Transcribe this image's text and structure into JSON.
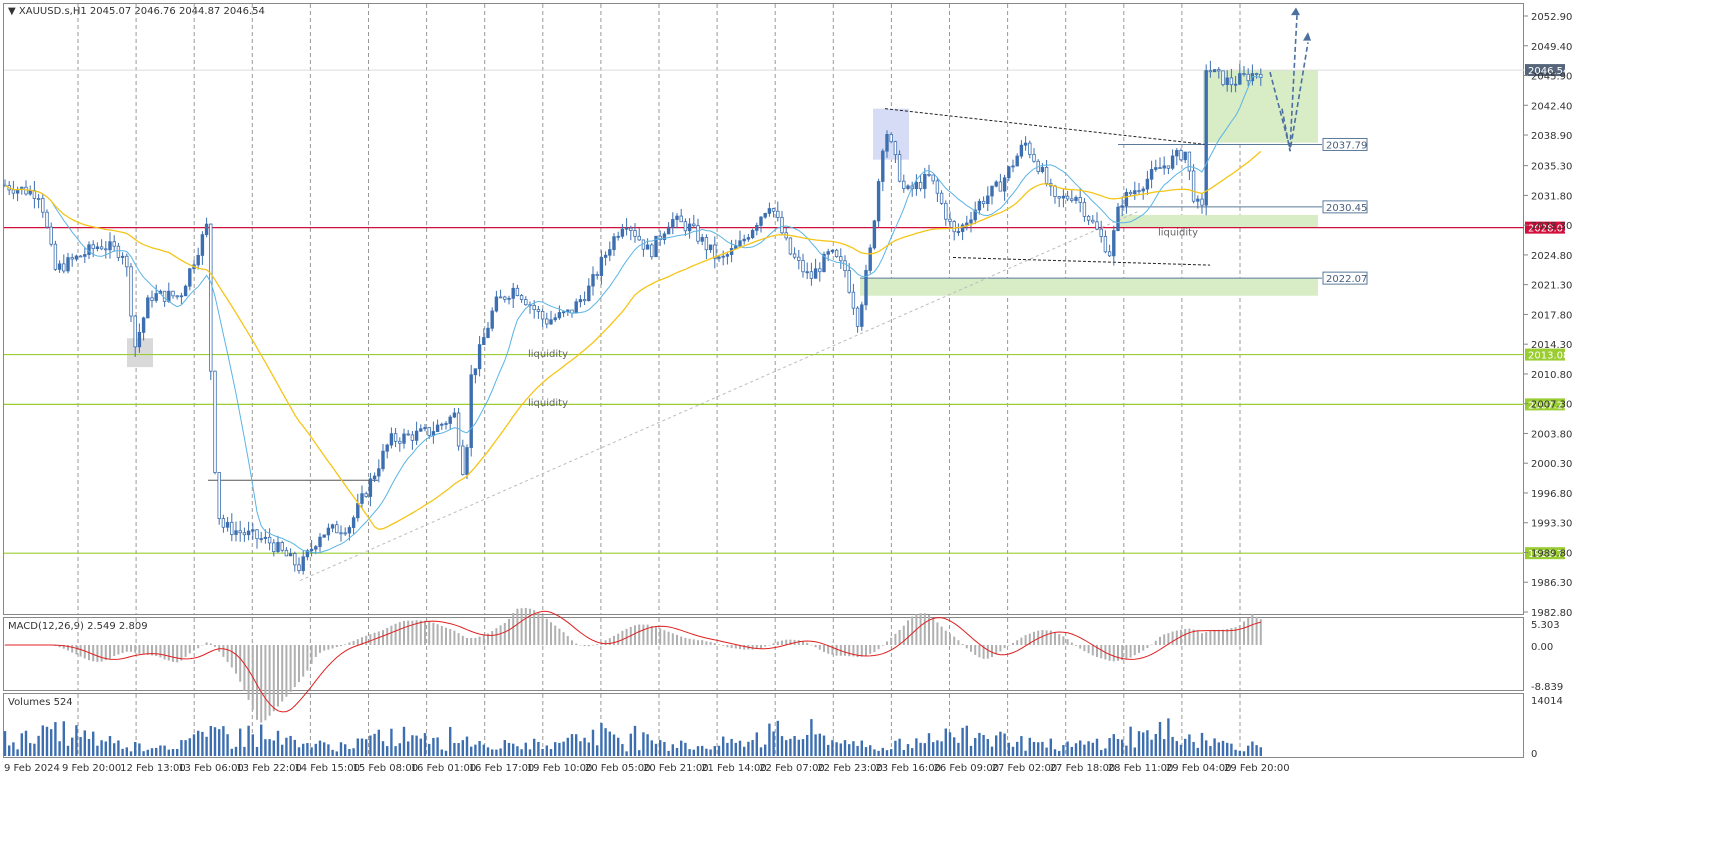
{
  "window": {
    "symbol_line": "XAUUSD.s,H1  2045.07 2046.76 2044.87 2046.54",
    "current_price": "2046.54"
  },
  "price_axis": {
    "ticks": [
      "2052.90",
      "2049.40",
      "2045.90",
      "2042.40",
      "2038.90",
      "2035.30",
      "2031.80",
      "2028.30",
      "2024.80",
      "2021.30",
      "2017.80",
      "2014.30",
      "2010.80",
      "2007.30",
      "2003.80",
      "2000.30",
      "1996.80",
      "1993.30",
      "1989.80",
      "1986.30",
      "1982.80"
    ]
  },
  "time_axis": {
    "labels": [
      "9 Feb 2024",
      "9 Feb 20:00",
      "12 Feb 13:00",
      "13 Feb 06:00",
      "13 Feb 22:00",
      "14 Feb 15:00",
      "15 Feb 08:00",
      "16 Feb 01:00",
      "16 Feb 17:00",
      "19 Feb 10:00",
      "20 Feb 05:00",
      "20 Feb 21:00",
      "21 Feb 14:00",
      "22 Feb 07:00",
      "22 Feb 23:00",
      "23 Feb 16:00",
      "26 Feb 09:00",
      "27 Feb 02:00",
      "27 Feb 18:00",
      "28 Feb 11:00",
      "29 Feb 04:00",
      "29 Feb 20:00"
    ]
  },
  "levels": [
    {
      "value": "2028.01",
      "color": "#d0103a"
    },
    {
      "value": "2013.08",
      "color": "#9acd32"
    },
    {
      "value": "2007.22",
      "color": "#9acd32"
    },
    {
      "value": "1989.72",
      "color": "#9acd32"
    }
  ],
  "zone_labels": [
    "2037.79",
    "2030.45",
    "2022.07"
  ],
  "annotations": [
    "liquidity",
    "liquidity",
    "liquidity"
  ],
  "macd": {
    "title": "MACD(12,26,9) 2.549 2.809",
    "ticks": [
      "5.303",
      "0.00",
      "-8.839"
    ]
  },
  "volumes": {
    "title": "Volumes 524",
    "ticks": [
      "14014",
      "0"
    ]
  },
  "colors": {
    "bull": "#3d6fb0",
    "bear": "#3d6fb0",
    "ma_fast": "#5ab4e5",
    "ma_slow": "#f5c518",
    "zone_green": "#d8ecc6",
    "macd_signal": "#e02020",
    "macd_hist": "#b0b0b0"
  }
}
